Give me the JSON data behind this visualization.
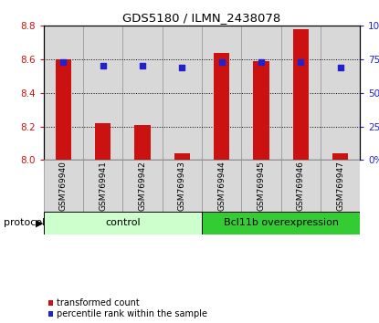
{
  "title": "GDS5180 / ILMN_2438078",
  "samples": [
    "GSM769940",
    "GSM769941",
    "GSM769942",
    "GSM769943",
    "GSM769944",
    "GSM769945",
    "GSM769946",
    "GSM769947"
  ],
  "transformed_counts": [
    8.6,
    8.22,
    8.21,
    8.04,
    8.64,
    8.59,
    8.78,
    8.04
  ],
  "percentile_ranks": [
    73,
    70,
    70,
    69,
    73,
    73,
    73,
    69
  ],
  "ylim_left": [
    8.0,
    8.8
  ],
  "ylim_right": [
    0,
    100
  ],
  "yticks_left": [
    8.0,
    8.2,
    8.4,
    8.6,
    8.8
  ],
  "yticks_right": [
    0,
    25,
    50,
    75,
    100
  ],
  "bar_color": "#cc1111",
  "dot_color": "#2222cc",
  "bar_width": 0.4,
  "control_color_light": "#ccffcc",
  "control_color_dark": "#44cc44",
  "overexpression_color": "#33cc33",
  "control_label": "control",
  "overexpression_label": "Bcl11b overexpression",
  "protocol_label": "protocol",
  "legend_bar_label": "transformed count",
  "legend_dot_label": "percentile rank within the sample",
  "tick_label_color_left": "#cc1111",
  "tick_label_color_right": "#2222cc",
  "bar_bottom": 8.0,
  "cell_bg_color": "#d8d8d8",
  "cell_border_color": "#999999",
  "plot_bg_color": "#ffffff"
}
